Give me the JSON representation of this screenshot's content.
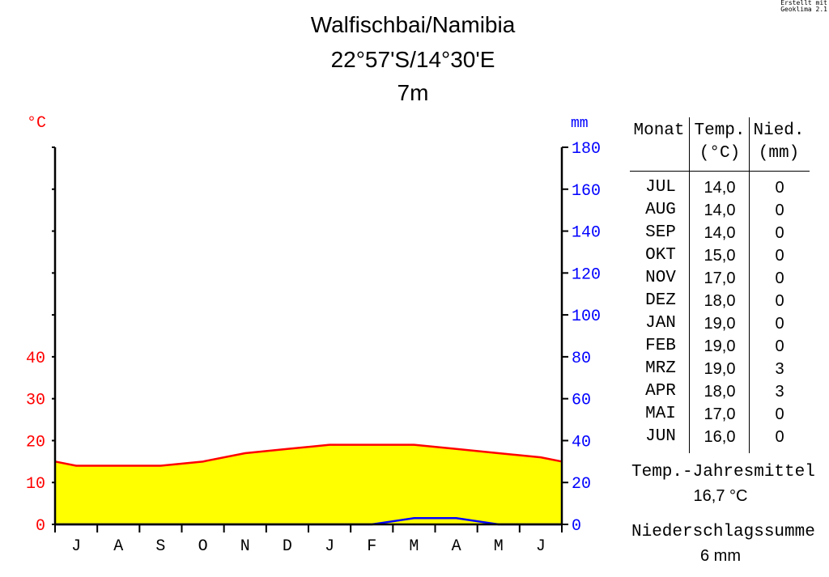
{
  "credit": {
    "line1": "Erstellt mit",
    "line2": "Geoklima 2.1"
  },
  "header": {
    "station": "Walfischbai/Namibia",
    "coords": "22°57'S/14°30'E",
    "elevation": "7m"
  },
  "table": {
    "col_month": "Monat",
    "col_temp_1": "Temp.",
    "col_temp_2": "(°C)",
    "col_prec_1": "Nied.",
    "col_prec_2": "(mm)",
    "rows": [
      {
        "month": "JUL",
        "temp": "14,0",
        "prec": "0"
      },
      {
        "month": "AUG",
        "temp": "14,0",
        "prec": "0"
      },
      {
        "month": "SEP",
        "temp": "14,0",
        "prec": "0"
      },
      {
        "month": "OKT",
        "temp": "15,0",
        "prec": "0"
      },
      {
        "month": "NOV",
        "temp": "17,0",
        "prec": "0"
      },
      {
        "month": "DEZ",
        "temp": "18,0",
        "prec": "0"
      },
      {
        "month": "JAN",
        "temp": "19,0",
        "prec": "0"
      },
      {
        "month": "FEB",
        "temp": "19,0",
        "prec": "0"
      },
      {
        "month": "MRZ",
        "temp": "19,0",
        "prec": "3"
      },
      {
        "month": "APR",
        "temp": "18,0",
        "prec": "3"
      },
      {
        "month": "MAI",
        "temp": "17,0",
        "prec": "0"
      },
      {
        "month": "JUN",
        "temp": "16,0",
        "prec": "0"
      }
    ]
  },
  "summary": {
    "temp_label": "Temp.-Jahresmittel",
    "temp_value": "16,7 °C",
    "prec_label": "Niederschlagssumme",
    "prec_value": "6 mm"
  },
  "chart_data": {
    "type": "line",
    "categories": [
      "J",
      "A",
      "S",
      "O",
      "N",
      "D",
      "J",
      "F",
      "M",
      "A",
      "M",
      "J"
    ],
    "series": [
      {
        "key": "temperature",
        "values": [
          14,
          14,
          14,
          15,
          17,
          18,
          19,
          19,
          19,
          18,
          17,
          16
        ],
        "color": "#ff0000",
        "fill": "#ffff00"
      },
      {
        "key": "precipitation",
        "values": [
          0,
          0,
          0,
          0,
          0,
          0,
          0,
          0,
          3,
          3,
          0,
          0
        ],
        "color": "#0000ff"
      }
    ],
    "left_axis": {
      "unit": "°C",
      "ticks": [
        0,
        10,
        20,
        30,
        40
      ],
      "ylim": [
        0,
        90
      ],
      "color": "#ff0000"
    },
    "right_axis": {
      "unit": "mm",
      "ticks": [
        0,
        20,
        40,
        60,
        80,
        100,
        120,
        140,
        160,
        180
      ],
      "ylim": [
        0,
        180
      ],
      "color": "#0000ff"
    },
    "boundary_temp": [
      15,
      15
    ],
    "grid": false
  }
}
